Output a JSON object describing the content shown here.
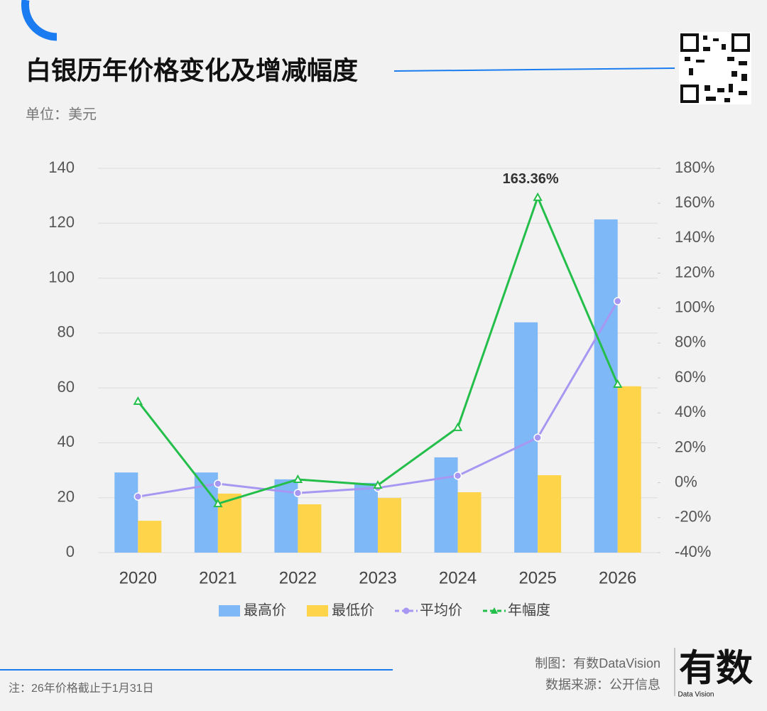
{
  "title": "白银历年价格变化及增减幅度",
  "unit": "单位：美元",
  "credit": "制图：有数DataVision",
  "source": "数据来源：公开信息",
  "note": "注：26年价格截止于1月31日",
  "logo": {
    "main": "有数",
    "sub": "Data Vision"
  },
  "chart_data": {
    "type": "combo",
    "categories": [
      "2020",
      "2021",
      "2022",
      "2023",
      "2024",
      "2025",
      "2026"
    ],
    "series": [
      {
        "name": "最高价",
        "type": "bar",
        "color": "#7fb8f7",
        "values": [
          29.2,
          29.2,
          26.7,
          25.4,
          34.7,
          83.9,
          121.4
        ]
      },
      {
        "name": "最低价",
        "type": "bar",
        "color": "#fdd44a",
        "values": [
          11.6,
          21.5,
          17.6,
          19.9,
          22.0,
          28.2,
          60.6
        ]
      },
      {
        "name": "平均价",
        "type": "line",
        "marker": "circle",
        "color": "#a897f2",
        "values": [
          20.4,
          25.1,
          21.7,
          23.6,
          28.0,
          41.9,
          91.6
        ]
      },
      {
        "name": "年幅度",
        "type": "line",
        "marker": "triangle",
        "axis": "y2",
        "color": "#24be4a",
        "values": [
          46.6,
          -12.0,
          1.9,
          -1.4,
          31.6,
          163.36,
          56.4
        ],
        "value_labels": [
          null,
          null,
          null,
          null,
          null,
          "163.36%",
          null
        ]
      }
    ],
    "ylim": [
      0,
      140
    ],
    "yticks": [
      0,
      20,
      40,
      60,
      80,
      100,
      120,
      140
    ],
    "y2lim": [
      -40,
      180
    ],
    "y2ticks": [
      {
        "value": -40,
        "label": "-40%"
      },
      {
        "value": -20,
        "label": "-20%"
      },
      {
        "value": 0,
        "label": "0%"
      },
      {
        "value": 20,
        "label": "20%"
      },
      {
        "value": 40,
        "label": "40%"
      },
      {
        "value": 60,
        "label": "60%"
      },
      {
        "value": 80,
        "label": "80%"
      },
      {
        "value": 100,
        "label": "100%"
      },
      {
        "value": 120,
        "label": "120%"
      },
      {
        "value": 140,
        "label": "140%"
      },
      {
        "value": 160,
        "label": "160%"
      },
      {
        "value": 180,
        "label": "180%"
      }
    ],
    "grid": true
  }
}
